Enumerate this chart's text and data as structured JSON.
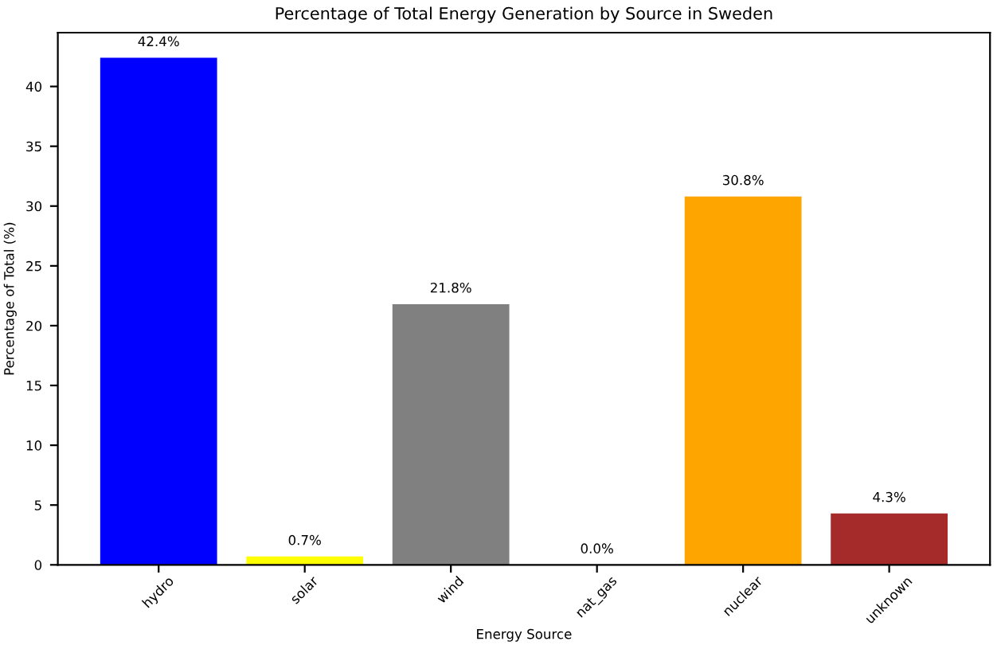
{
  "chart_data": {
    "type": "bar",
    "title": "Percentage of Total Energy Generation by Source in Sweden",
    "xlabel": "Energy Source",
    "ylabel": "Percentage of Total (%)",
    "categories": [
      "hydro",
      "solar",
      "wind",
      "nat_gas",
      "nuclear",
      "unknown"
    ],
    "values": [
      42.4,
      0.7,
      21.8,
      0.0,
      30.8,
      4.3
    ],
    "colors": [
      "#0000ff",
      "#ffff00",
      "#808080",
      "#008000",
      "#ffa500",
      "#a52a2a"
    ],
    "value_labels": [
      "42.4%",
      "0.7%",
      "21.8%",
      "0.0%",
      "30.8%",
      "4.3%"
    ],
    "ylim": [
      0,
      44.5
    ],
    "yticks": [
      0,
      5,
      10,
      15,
      20,
      25,
      30,
      35,
      40
    ],
    "grid": false,
    "legend": false
  }
}
